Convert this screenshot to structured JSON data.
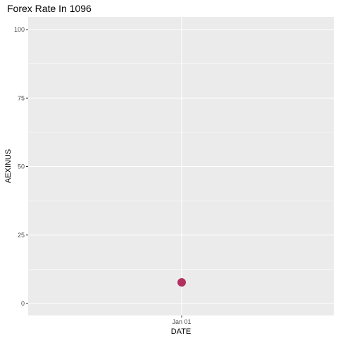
{
  "chart_data": {
    "type": "scatter",
    "title": "Forex Rate In 1096",
    "xlabel": "DATE",
    "ylabel": "AEXINUS",
    "x_tick_labels": [
      "Jan 01"
    ],
    "y_ticks": [
      0,
      25,
      50,
      75,
      100
    ],
    "ylim": [
      0,
      100
    ],
    "points": [
      {
        "x": "Jan 01",
        "y": 7.7
      }
    ],
    "point_color": "#B03060",
    "panel_background": "#EBEBEB",
    "grid_color": "#FFFFFF",
    "grid": true,
    "legend": "none"
  }
}
